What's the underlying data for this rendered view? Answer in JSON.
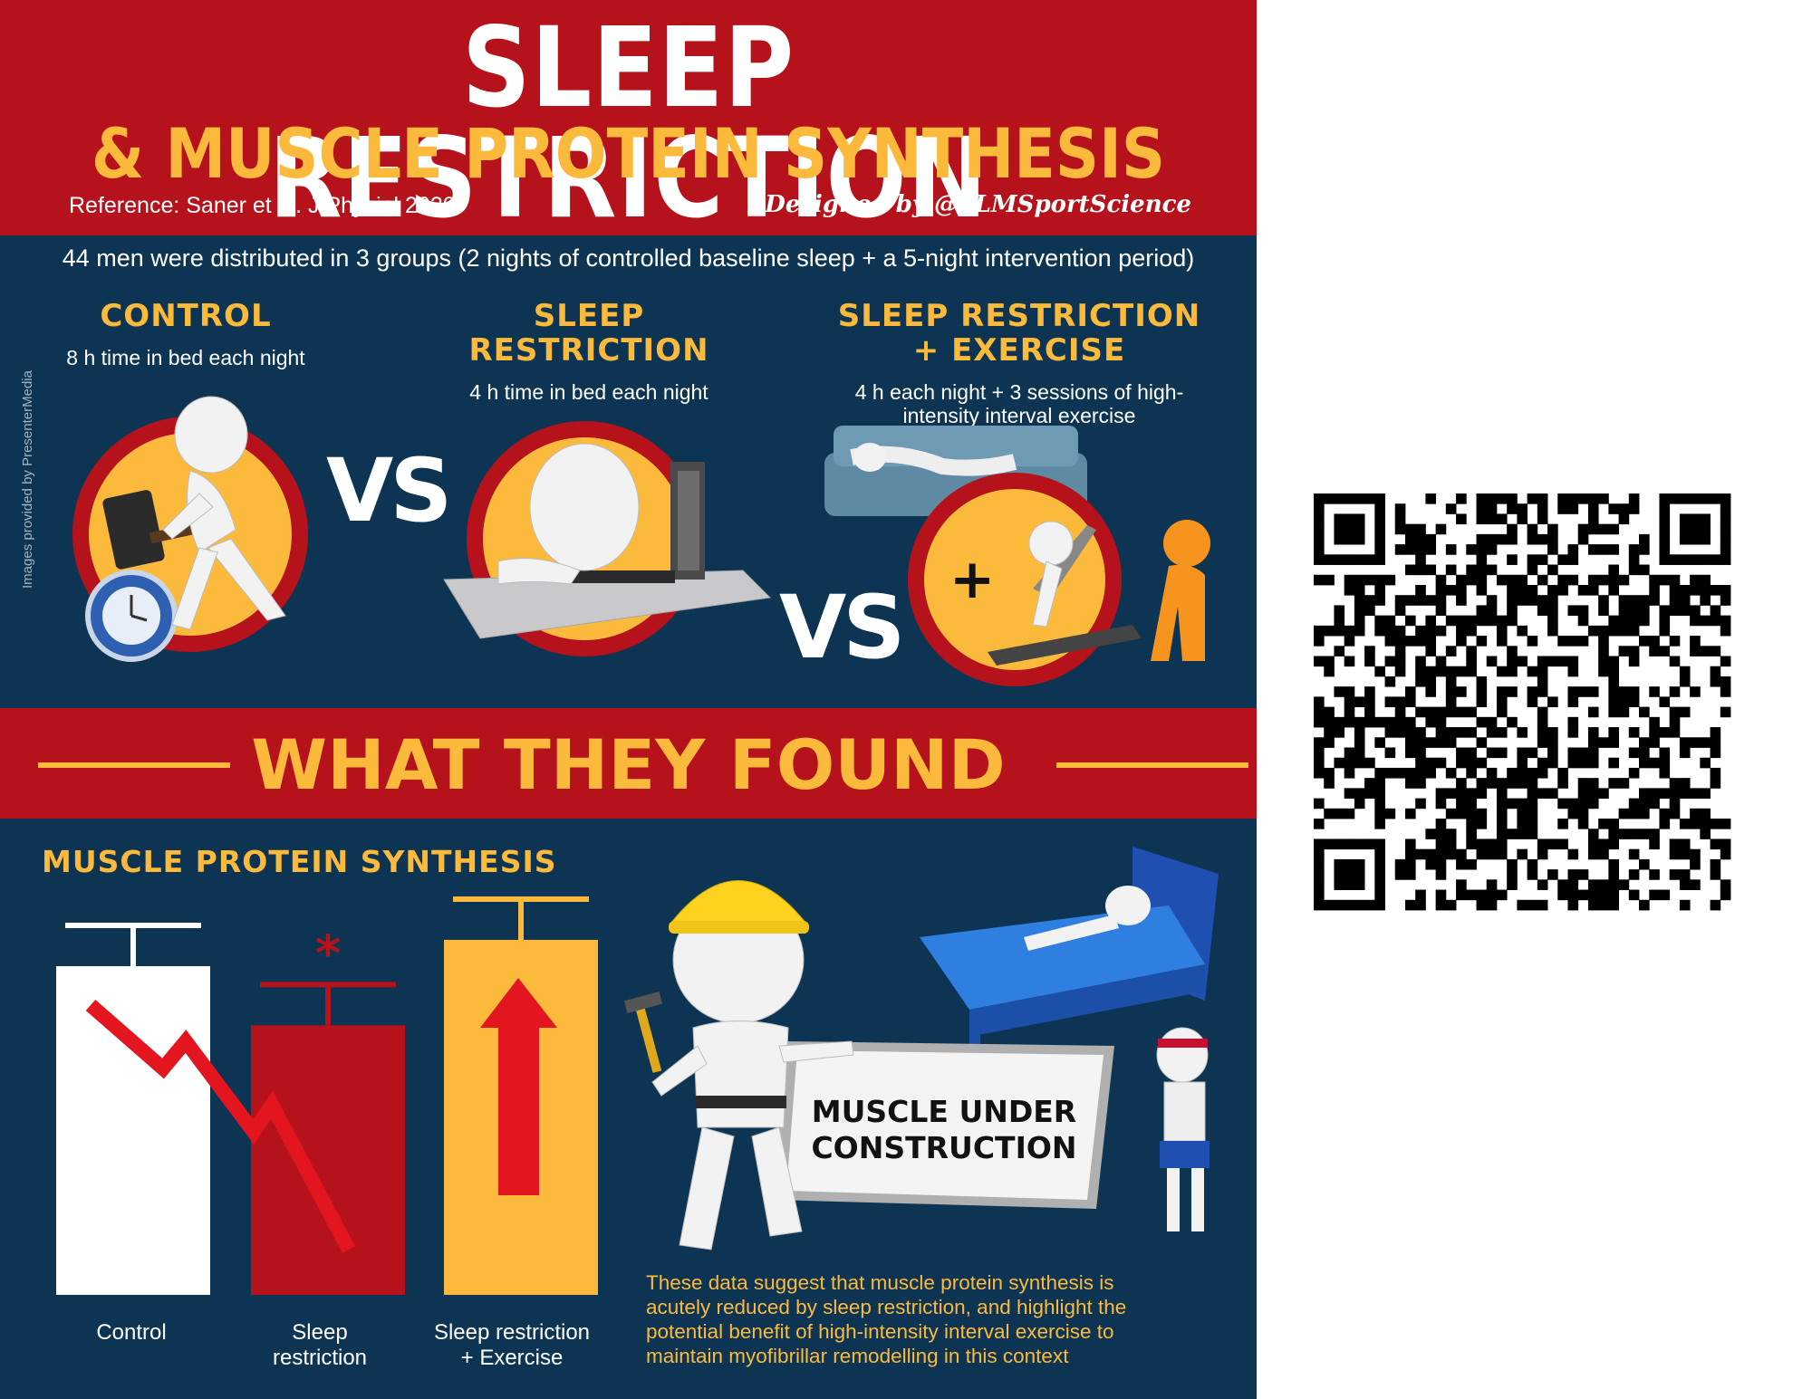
{
  "header": {
    "title": "SLEEP RESTRICTION",
    "subtitle": "& MUSCLE PROTEIN SYNTHESIS",
    "reference": "Reference: Saner et al. J Physiol 2020",
    "designed_by": "Designed by @YLMSportScience"
  },
  "intro": "44 men were distributed in 3 groups (2 nights of controlled baseline sleep + a 5-night intervention period)",
  "groups": [
    {
      "title_lines": [
        "CONTROL"
      ],
      "description_lines": [
        "8 h time in bed each night"
      ]
    },
    {
      "title_lines": [
        "SLEEP",
        "RESTRICTION"
      ],
      "description_lines": [
        "4 h time in bed each night"
      ]
    },
    {
      "title_lines": [
        "SLEEP RESTRICTION",
        "+ EXERCISE"
      ],
      "description_lines": [
        "4 h each night + 3 sessions of high-",
        "intensity interval exercise"
      ]
    }
  ],
  "vs_label": "VS",
  "image_credit": "Images provided by PresenterMedia",
  "found_title": "WHAT THEY FOUND",
  "mps_title": "MUSCLE PROTEIN SYNTHESIS",
  "bars": [
    {
      "label_lines": [
        "Control"
      ],
      "relative_height": 1.0,
      "color": "#ffffff",
      "significance": ""
    },
    {
      "label_lines": [
        "Sleep",
        "restriction"
      ],
      "relative_height": 0.82,
      "color": "#b5121b",
      "significance": "*"
    },
    {
      "label_lines": [
        "Sleep restriction",
        "+ Exercise"
      ],
      "relative_height": 1.08,
      "color": "#fbba3c",
      "significance": ""
    }
  ],
  "muscle_sign_lines": [
    "MUSCLE UNDER",
    "CONSTRUCTION"
  ],
  "conclusion_lines": [
    "These data suggest that muscle protein synthesis is",
    "acutely reduced by sleep restriction, and highlight the",
    "potential benefit of high-intensity interval exercise to",
    "maintain myofibrillar remodelling in this context"
  ],
  "colors": {
    "red": "#b5121b",
    "navy": "#0d3553",
    "gold": "#fbba3c",
    "white": "#ffffff"
  },
  "qr_code": "qr-code"
}
